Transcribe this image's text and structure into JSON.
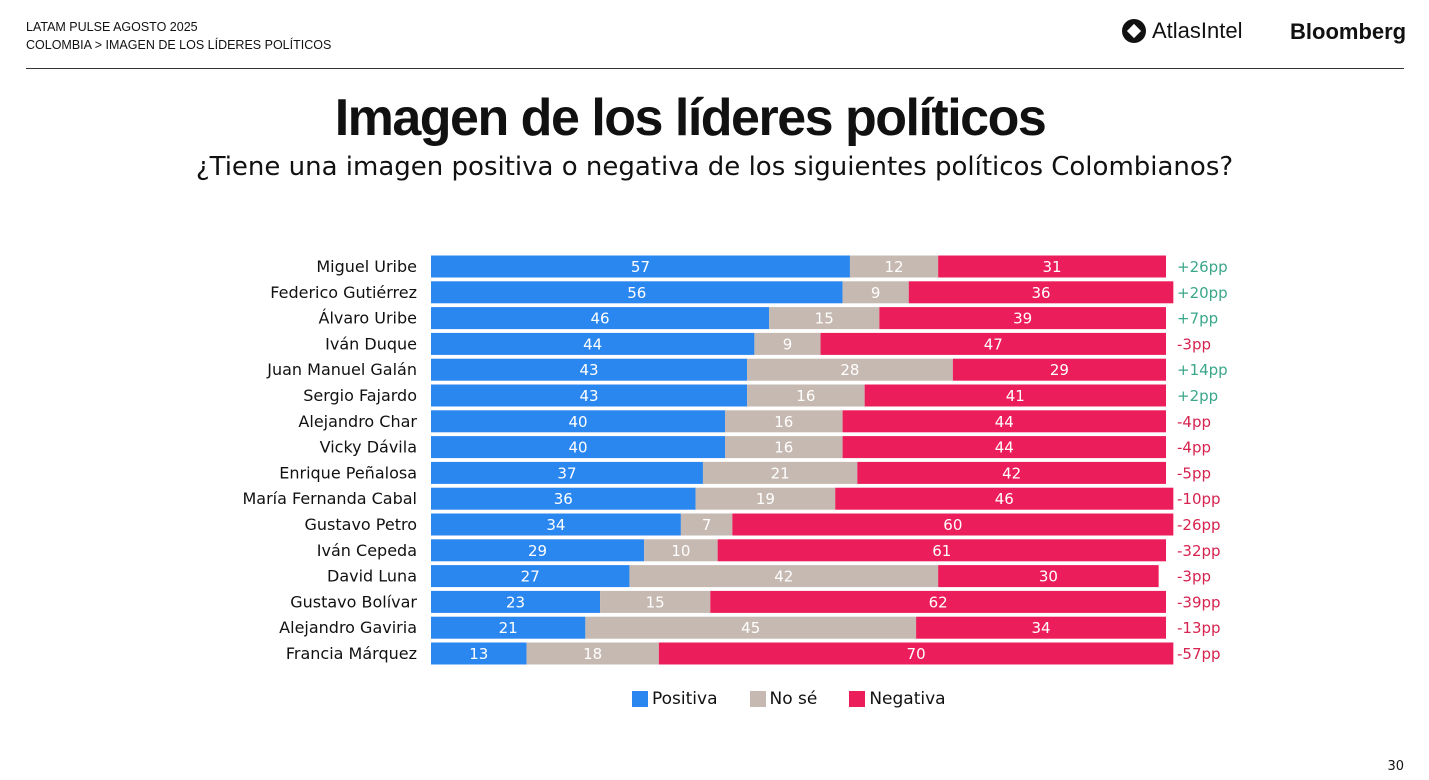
{
  "header": {
    "line1": "LATAM PULSE AGOSTO 2025",
    "line2": "COLOMBIA > IMAGEN DE LOS LÍDERES POLÍTICOS"
  },
  "logos": {
    "atlas": "AtlasIntel",
    "bloomberg": "Bloomberg"
  },
  "page_number": "30",
  "chart_data": {
    "type": "bar",
    "stacked": true,
    "orientation": "horizontal",
    "title": "Imagen de los líderes políticos",
    "subtitle": "¿Tiene una imagen positiva o negativa de los siguientes políticos Colombianos?",
    "xlim": [
      0,
      100
    ],
    "legend_position": "bottom",
    "categories": [
      "Miguel Uribe",
      "Federico Gutiérrez",
      "Álvaro Uribe",
      "Iván Duque",
      "Juan Manuel Galán",
      "Sergio Fajardo",
      "Alejandro Char",
      "Vicky Dávila",
      "Enrique Peñalosa",
      "María Fernanda Cabal",
      "Gustavo Petro",
      "Iván Cepeda",
      "David Luna",
      "Gustavo Bolívar",
      "Alejandro Gaviria",
      "Francia Márquez"
    ],
    "series": [
      {
        "name": "Positiva",
        "color": "#2b87f0",
        "values": [
          57,
          56,
          46,
          44,
          43,
          43,
          40,
          40,
          37,
          36,
          34,
          29,
          27,
          23,
          21,
          13
        ]
      },
      {
        "name": "No sé",
        "color": "#c6b9b1",
        "values": [
          12,
          9,
          15,
          9,
          28,
          16,
          16,
          16,
          21,
          19,
          7,
          10,
          42,
          15,
          45,
          18
        ]
      },
      {
        "name": "Negativa",
        "color": "#ec1d5b",
        "values": [
          31,
          36,
          39,
          47,
          29,
          41,
          44,
          44,
          42,
          46,
          60,
          61,
          30,
          62,
          34,
          70
        ]
      }
    ],
    "net_labels": [
      "+26pp",
      "+20pp",
      "+7pp",
      "-3pp",
      "+14pp",
      "+2pp",
      "-4pp",
      "-4pp",
      "-5pp",
      "-10pp",
      "-26pp",
      "-32pp",
      "-3pp",
      "-39pp",
      "-13pp",
      "-57pp"
    ],
    "net_colors": {
      "positive": "#3aa68a",
      "negative": "#d6234f"
    }
  }
}
